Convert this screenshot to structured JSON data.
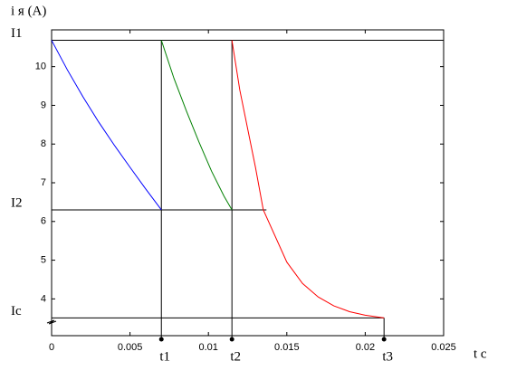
{
  "chart_data": {
    "type": "line",
    "y_label": "i я  (A)",
    "x_label": "t  c",
    "xlim": [
      0,
      0.025
    ],
    "ylim": [
      3.05,
      10.95
    ],
    "xticks": [
      0,
      0.005,
      0.01,
      0.015,
      0.02,
      0.025
    ],
    "yticks": [
      4,
      5,
      6,
      7,
      8,
      9,
      10
    ],
    "series": [
      {
        "color": "#0000ff",
        "x": [
          0,
          0.001,
          0.002,
          0.003,
          0.004,
          0.005,
          0.006,
          0.007
        ],
        "values": [
          10.68,
          9.92,
          9.22,
          8.57,
          7.97,
          7.4,
          6.84,
          6.3
        ]
      },
      {
        "color": "#008000",
        "x": [
          0.007,
          0.0078,
          0.0086,
          0.0094,
          0.0102,
          0.011,
          0.0115
        ],
        "values": [
          10.68,
          9.7,
          8.85,
          8.05,
          7.3,
          6.65,
          6.3
        ]
      },
      {
        "color": "#ff0000",
        "x": [
          0.0115,
          0.012,
          0.013,
          0.0135,
          0.014,
          0.015,
          0.016,
          0.017,
          0.018,
          0.019,
          0.02,
          0.0212
        ],
        "values": [
          10.68,
          9.4,
          7.4,
          6.3,
          5.85,
          4.95,
          4.4,
          4.05,
          3.82,
          3.67,
          3.58,
          3.51
        ]
      }
    ],
    "levels": [
      {
        "label": "I1",
        "value": 10.68,
        "x_end": 0.025
      },
      {
        "label": "I2",
        "value": 6.3,
        "x_end": 0.0137
      },
      {
        "label": "Ic",
        "value": 3.51,
        "x_end": 0.0212
      }
    ],
    "markers": [
      {
        "label": "t1",
        "x": 0.007,
        "y_top": 10.68
      },
      {
        "label": "t2",
        "x": 0.0115,
        "y_top": 10.68
      },
      {
        "label": "t3",
        "x": 0.0212,
        "y_top": 3.51
      }
    ]
  }
}
